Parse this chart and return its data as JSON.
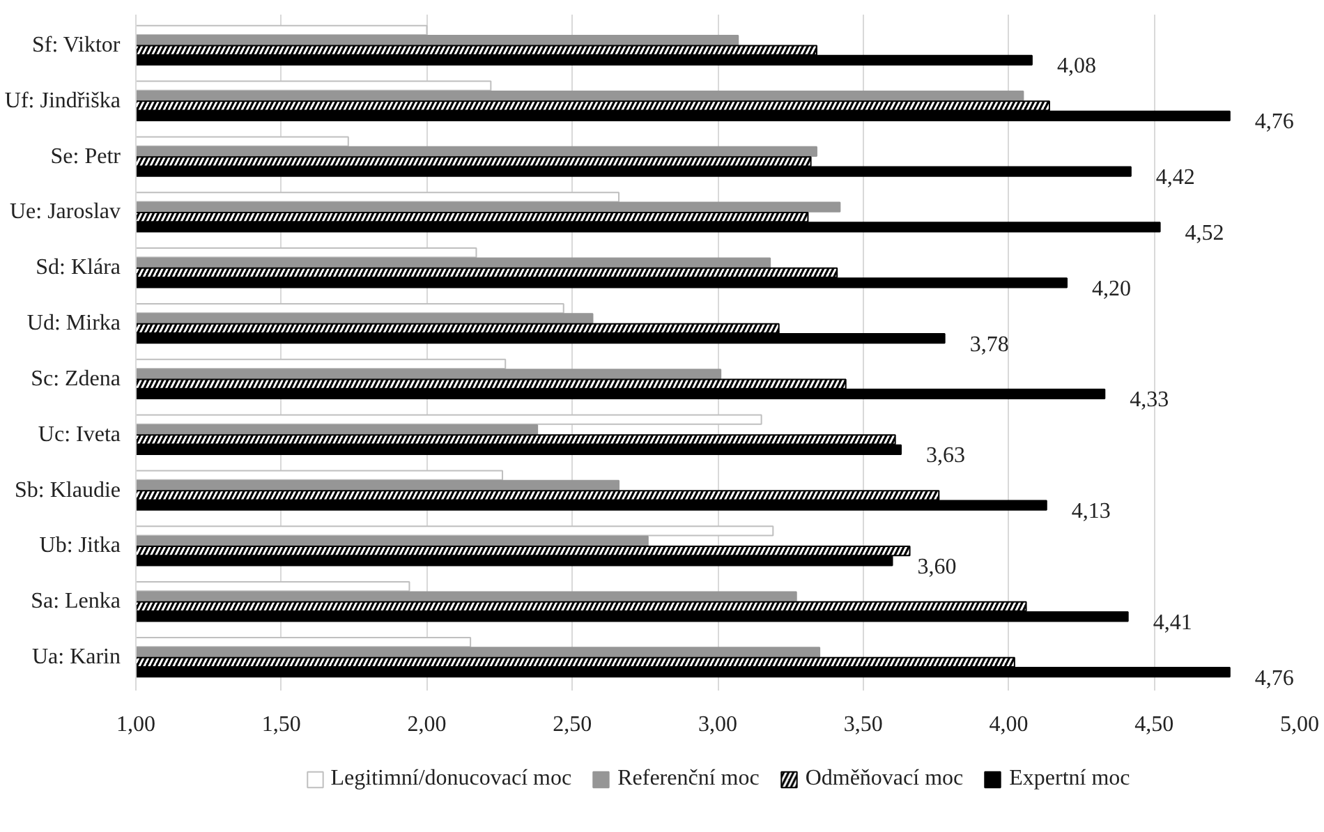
{
  "chart_data": {
    "type": "bar",
    "orientation": "horizontal",
    "categories": [
      "Sf: Viktor",
      "Uf: Jindřiška",
      "Se: Petr",
      "Ue: Jaroslav",
      "Sd: Klára",
      "Ud: Mirka",
      "Sc: Zdena",
      "Uc: Iveta",
      "Sb: Klaudie",
      "Ub: Jitka",
      "Sa: Lenka",
      "Ua: Karin"
    ],
    "series": [
      {
        "name": "Legitimní/donucovací moc",
        "color": "#ffffff",
        "values": [
          2.0,
          2.22,
          1.73,
          2.66,
          2.17,
          2.47,
          2.27,
          3.15,
          2.26,
          3.19,
          1.94,
          2.15
        ]
      },
      {
        "name": "Referenční moc",
        "color": "#969696",
        "values": [
          3.07,
          4.05,
          3.34,
          3.42,
          3.18,
          2.57,
          3.01,
          2.38,
          2.66,
          2.76,
          3.27,
          3.35
        ]
      },
      {
        "name": "Odměňovací moc",
        "color": "#000000",
        "values": [
          3.34,
          4.14,
          3.32,
          3.31,
          3.41,
          3.21,
          3.44,
          3.61,
          3.76,
          3.66,
          4.06,
          4.02
        ]
      },
      {
        "name": "Expertní moc",
        "color": "#000000",
        "values": [
          4.08,
          4.76,
          4.42,
          4.52,
          4.2,
          3.78,
          4.33,
          3.63,
          4.13,
          3.6,
          4.41,
          4.76
        ],
        "value_labels": [
          "4,08",
          "4,76",
          "4,42",
          "4,52",
          "4,20",
          "3,78",
          "4,33",
          "3,63",
          "4,13",
          "3,60",
          "4,41",
          "4,76"
        ]
      }
    ],
    "xlim": [
      1,
      5
    ],
    "xticks": [
      {
        "value": 1,
        "label": "1,00"
      },
      {
        "value": 1.5,
        "label": "1,50"
      },
      {
        "value": 2,
        "label": "2,00"
      },
      {
        "value": 2.5,
        "label": "2,50"
      },
      {
        "value": 3,
        "label": "3,00"
      },
      {
        "value": 3.5,
        "label": "3,50"
      },
      {
        "value": 4,
        "label": "4,00"
      },
      {
        "value": 4.5,
        "label": "4,50"
      },
      {
        "value": 5,
        "label": "5,00"
      }
    ],
    "grid": "x",
    "legend": "bottom"
  }
}
